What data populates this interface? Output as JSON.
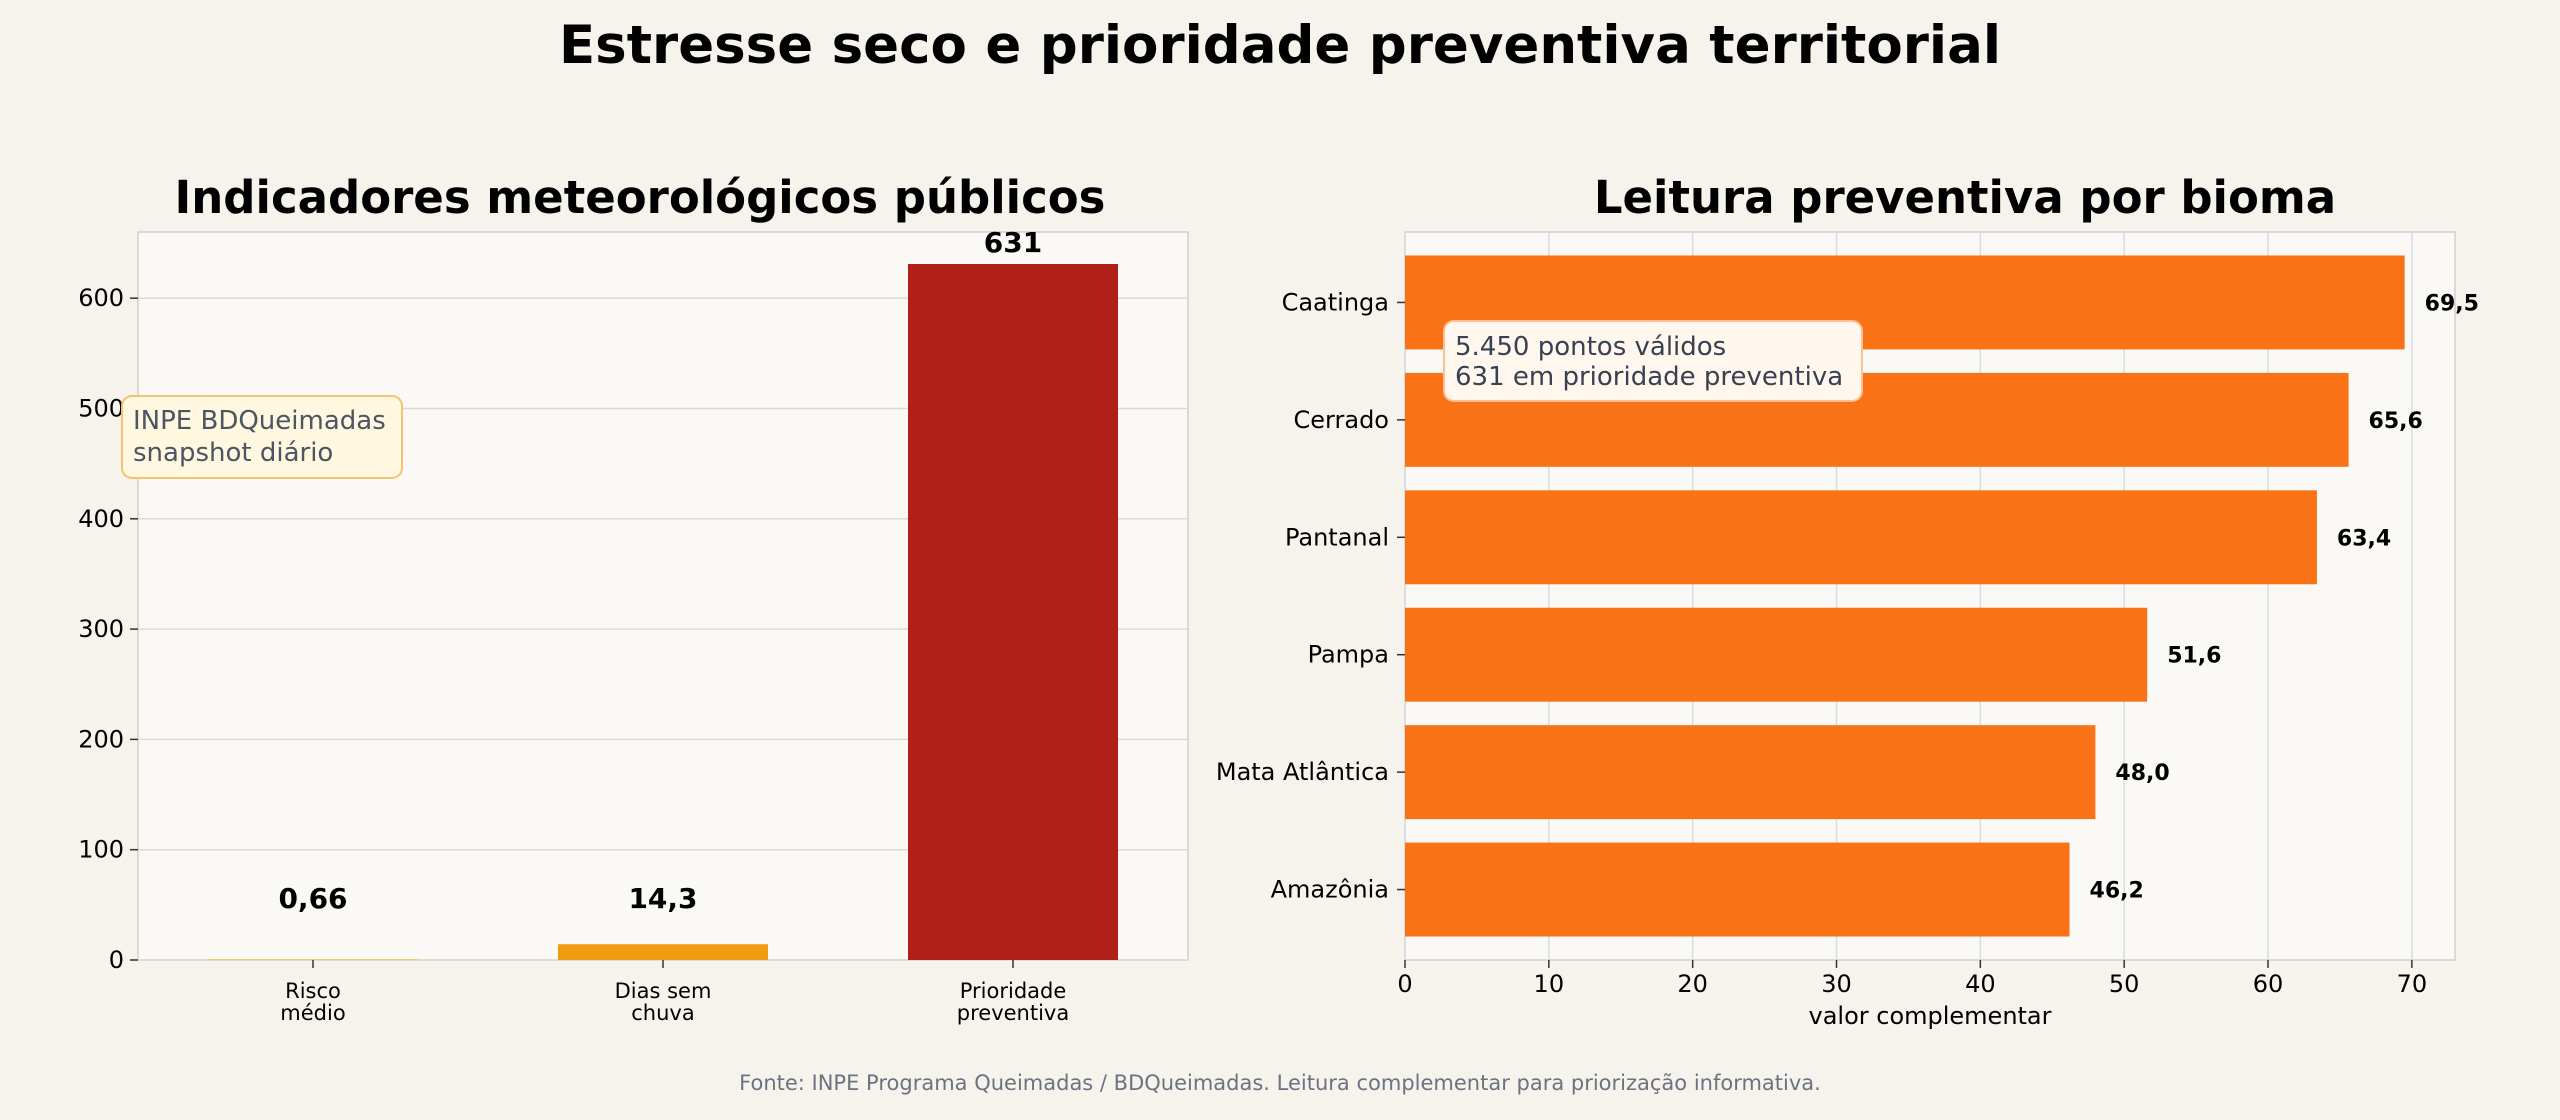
{
  "figure": {
    "title": "Estresse seco e prioridade preventiva territorial",
    "source": "Fonte: INPE Programa Queimadas / BDQueimadas. Leitura complementar para priorização informativa."
  },
  "chart_data": [
    {
      "type": "bar",
      "title": "Indicadores meteorológicos públicos",
      "categories": [
        "Risco\nmédio",
        "Dias sem\nchuva",
        "Prioridade\npreventiva"
      ],
      "values": [
        0.66,
        14.3,
        631
      ],
      "value_labels": [
        "0,66",
        "14,3",
        "631"
      ],
      "colors": [
        "#f5c542",
        "#f09c12",
        "#b12018"
      ],
      "ylim": [
        0,
        660
      ],
      "yticks": [
        0,
        100,
        200,
        300,
        400,
        500,
        600
      ],
      "grid": true,
      "annotation": [
        "INPE BDQueimadas",
        "snapshot diário"
      ]
    },
    {
      "type": "bar",
      "orientation": "horizontal",
      "title": "Leitura preventiva por bioma",
      "categories": [
        "Caatinga",
        "Cerrado",
        "Pantanal",
        "Pampa",
        "Mata Atlântica",
        "Amazônia"
      ],
      "values": [
        69.5,
        65.6,
        63.4,
        51.6,
        48.0,
        46.2
      ],
      "value_labels": [
        "69,5",
        "65,6",
        "63,4",
        "51,6",
        "48,0",
        "46,2"
      ],
      "color": "#f97316",
      "xlabel": "valor complementar",
      "xlim": [
        0,
        73
      ],
      "xticks": [
        0,
        10,
        20,
        30,
        40,
        50,
        60,
        70
      ],
      "grid": true,
      "annotation": [
        "5.450 pontos válidos",
        "631 em prioridade preventiva"
      ]
    }
  ]
}
